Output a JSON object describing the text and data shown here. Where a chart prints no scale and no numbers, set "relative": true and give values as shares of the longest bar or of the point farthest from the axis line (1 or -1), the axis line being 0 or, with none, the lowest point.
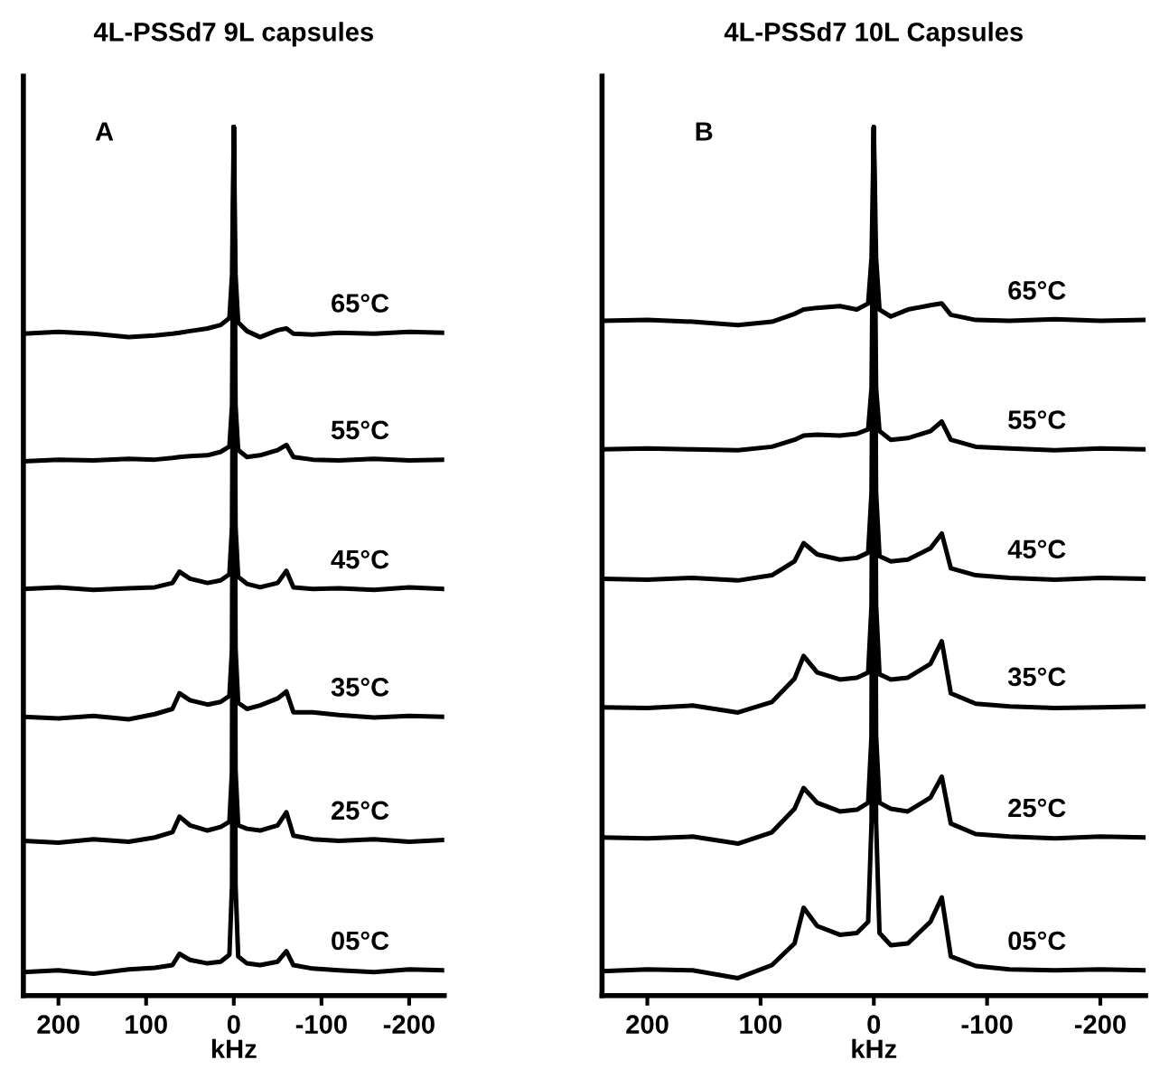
{
  "chart_data": [
    {
      "type": "line",
      "title": "4L-PSSd7 9L capsules",
      "xlabel": "kHz",
      "annotations": [
        "A"
      ],
      "relative": true,
      "xlim": [
        240,
        -240
      ],
      "xticks": [
        200,
        100,
        0,
        -100,
        -200
      ],
      "x": [
        240,
        200,
        160,
        120,
        90,
        70,
        62,
        50,
        30,
        15,
        5,
        2,
        0,
        -2,
        -5,
        -15,
        -30,
        -50,
        -60,
        -68,
        -90,
        -120,
        -160,
        -200,
        -240
      ],
      "series": [
        {
          "name": "65°C",
          "color": "#000000",
          "values": [
            0.762,
            0.764,
            0.762,
            0.758,
            0.76,
            0.762,
            0.763,
            0.765,
            0.768,
            0.772,
            0.78,
            0.83,
            1,
            0.83,
            0.775,
            0.765,
            0.758,
            0.766,
            0.768,
            0.762,
            0.761,
            0.763,
            0.762,
            0.764,
            0.763
          ]
        },
        {
          "name": "55°C",
          "color": "#000000",
          "values": [
            0.615,
            0.617,
            0.616,
            0.618,
            0.617,
            0.619,
            0.62,
            0.621,
            0.622,
            0.626,
            0.632,
            0.68,
            1,
            0.68,
            0.628,
            0.62,
            0.622,
            0.628,
            0.634,
            0.62,
            0.617,
            0.616,
            0.618,
            0.616,
            0.617
          ]
        },
        {
          "name": "45°C",
          "color": "#000000",
          "values": [
            0.468,
            0.47,
            0.467,
            0.469,
            0.47,
            0.475,
            0.488,
            0.48,
            0.475,
            0.478,
            0.485,
            0.54,
            1,
            0.54,
            0.482,
            0.474,
            0.47,
            0.475,
            0.489,
            0.47,
            0.468,
            0.469,
            0.467,
            0.47,
            0.468
          ]
        },
        {
          "name": "35°C",
          "color": "#000000",
          "values": [
            0.321,
            0.319,
            0.322,
            0.318,
            0.324,
            0.33,
            0.348,
            0.34,
            0.335,
            0.338,
            0.345,
            0.4,
            1,
            0.4,
            0.337,
            0.33,
            0.334,
            0.342,
            0.35,
            0.326,
            0.326,
            0.323,
            0.32,
            0.322,
            0.321
          ]
        },
        {
          "name": "25°C",
          "color": "#000000",
          "values": [
            0.178,
            0.176,
            0.18,
            0.177,
            0.182,
            0.188,
            0.206,
            0.196,
            0.19,
            0.194,
            0.2,
            0.26,
            1,
            0.26,
            0.196,
            0.192,
            0.19,
            0.196,
            0.211,
            0.184,
            0.18,
            0.178,
            0.18,
            0.177,
            0.179
          ]
        },
        {
          "name": "05°C",
          "color": "#000000",
          "values": [
            0.027,
            0.029,
            0.025,
            0.03,
            0.032,
            0.035,
            0.048,
            0.041,
            0.037,
            0.039,
            0.047,
            0.127,
            1,
            0.127,
            0.045,
            0.037,
            0.035,
            0.039,
            0.051,
            0.035,
            0.031,
            0.029,
            0.027,
            0.03,
            0.029
          ]
        }
      ]
    },
    {
      "type": "line",
      "title": "4L-PSSd7 10L Capsules",
      "xlabel": "kHz",
      "annotations": [
        "B"
      ],
      "relative": true,
      "xlim": [
        240,
        -240
      ],
      "xticks": [
        200,
        100,
        0,
        -100,
        -200
      ],
      "x": [
        240,
        200,
        160,
        120,
        90,
        70,
        62,
        50,
        30,
        15,
        5,
        2,
        0,
        -2,
        -5,
        -15,
        -30,
        -50,
        -60,
        -68,
        -90,
        -120,
        -160,
        -200,
        -240
      ],
      "series": [
        {
          "name": "65°C",
          "color": "#000000",
          "values": [
            0.777,
            0.778,
            0.776,
            0.772,
            0.776,
            0.785,
            0.79,
            0.792,
            0.794,
            0.79,
            0.797,
            0.85,
            1,
            0.85,
            0.79,
            0.782,
            0.79,
            0.795,
            0.797,
            0.784,
            0.778,
            0.777,
            0.779,
            0.777,
            0.778
          ]
        },
        {
          "name": "55°C",
          "color": "#000000",
          "values": [
            0.629,
            0.63,
            0.629,
            0.628,
            0.632,
            0.64,
            0.645,
            0.646,
            0.645,
            0.647,
            0.652,
            0.7,
            1,
            0.7,
            0.65,
            0.64,
            0.642,
            0.65,
            0.661,
            0.64,
            0.632,
            0.63,
            0.628,
            0.63,
            0.629
          ]
        },
        {
          "name": "45°C",
          "color": "#000000",
          "values": [
            0.48,
            0.479,
            0.481,
            0.478,
            0.484,
            0.5,
            0.521,
            0.508,
            0.502,
            0.504,
            0.51,
            0.58,
            1,
            0.58,
            0.506,
            0.5,
            0.502,
            0.515,
            0.532,
            0.492,
            0.484,
            0.481,
            0.479,
            0.481,
            0.48
          ]
        },
        {
          "name": "35°C",
          "color": "#000000",
          "values": [
            0.332,
            0.331,
            0.334,
            0.326,
            0.338,
            0.365,
            0.391,
            0.372,
            0.364,
            0.366,
            0.372,
            0.45,
            1,
            0.45,
            0.37,
            0.364,
            0.366,
            0.382,
            0.408,
            0.348,
            0.336,
            0.333,
            0.331,
            0.332,
            0.333
          ]
        },
        {
          "name": "25°C",
          "color": "#000000",
          "values": [
            0.182,
            0.181,
            0.183,
            0.175,
            0.188,
            0.215,
            0.239,
            0.222,
            0.212,
            0.214,
            0.222,
            0.3,
            1,
            0.3,
            0.222,
            0.215,
            0.212,
            0.228,
            0.252,
            0.198,
            0.186,
            0.183,
            0.181,
            0.183,
            0.182
          ]
        },
        {
          "name": "05°C",
          "color": "#000000",
          "values": [
            0.028,
            0.03,
            0.029,
            0.02,
            0.035,
            0.06,
            0.101,
            0.08,
            0.07,
            0.072,
            0.085,
            0.2,
            1,
            0.2,
            0.072,
            0.058,
            0.06,
            0.085,
            0.113,
            0.045,
            0.034,
            0.03,
            0.029,
            0.03,
            0.029
          ]
        }
      ]
    }
  ]
}
